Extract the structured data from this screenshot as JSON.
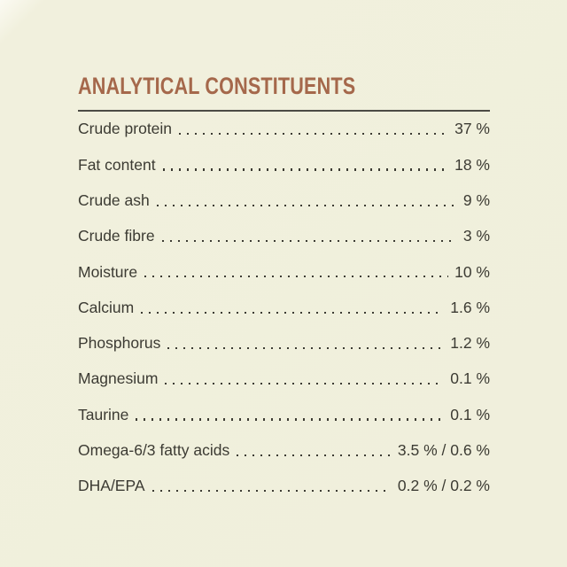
{
  "page": {
    "background_color": "#f0efdc",
    "text_color": "#3c3b33",
    "divider_color": "#4c4b45"
  },
  "heading": {
    "title": "ANALYTICAL CONSTITUENTS",
    "color": "#a5684b"
  },
  "table": {
    "rows": [
      {
        "label": "Crude protein",
        "value": "37 %"
      },
      {
        "label": "Fat content",
        "value": "18 %"
      },
      {
        "label": "Crude ash",
        "value": "9 %"
      },
      {
        "label": "Crude fibre",
        "value": "3 %"
      },
      {
        "label": "Moisture",
        "value": "10 %"
      },
      {
        "label": "Calcium",
        "value": "1.6 %"
      },
      {
        "label": "Phosphorus",
        "value": "1.2 %"
      },
      {
        "label": "Magnesium",
        "value": "0.1 %"
      },
      {
        "label": "Taurine",
        "value": "0.1 %"
      },
      {
        "label": "Omega-6/3 fatty acids",
        "value": "3.5 % / 0.6 %"
      },
      {
        "label": "DHA/EPA",
        "value": "0.2 % / 0.2 %"
      }
    ]
  }
}
